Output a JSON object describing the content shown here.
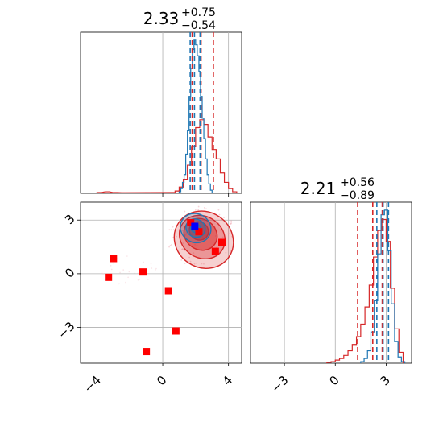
{
  "chart_data": {
    "type": "corner",
    "colors": {
      "red": "#d62728",
      "blue": "#1f77b4",
      "marker_red": "#ff0000",
      "marker_blue": "#0000ff",
      "grid": "#b0b0b0"
    },
    "panels": [
      {
        "id": "hist-x",
        "type": "histogram",
        "title": {
          "value": "2.33",
          "upper": "+0.75",
          "lower": "−0.54"
        },
        "xlim": [
          -5,
          4.8
        ],
        "grid_x": [
          -4,
          0,
          4
        ],
        "series": [
          {
            "name": "",
            "color": "#d62728",
            "bins": [
              [
                -4,
                0.005
              ],
              [
                -3.5,
                0.01
              ],
              [
                -3,
                0.005
              ],
              [
                -2.5,
                0.004
              ],
              [
                0.5,
                0.005
              ],
              [
                0.75,
                0.015
              ],
              [
                1.0,
                0.04
              ],
              [
                1.25,
                0.09
              ],
              [
                1.5,
                0.18
              ],
              [
                1.75,
                0.3
              ],
              [
                2.0,
                0.42
              ],
              [
                2.25,
                0.47
              ],
              [
                2.5,
                0.44
              ],
              [
                2.75,
                0.36
              ],
              [
                3.0,
                0.28
              ],
              [
                3.25,
                0.22
              ],
              [
                3.5,
                0.13
              ],
              [
                3.75,
                0.07
              ],
              [
                4.0,
                0.03
              ],
              [
                4.25,
                0.01
              ]
            ],
            "quantiles": [
              1.79,
              2.33,
              3.08
            ]
          },
          {
            "name": "",
            "color": "#1f77b4",
            "bins": [
              [
                1.0,
                0.01
              ],
              [
                1.1,
                0.03
              ],
              [
                1.2,
                0.07
              ],
              [
                1.3,
                0.12
              ],
              [
                1.4,
                0.25
              ],
              [
                1.5,
                0.4
              ],
              [
                1.6,
                0.62
              ],
              [
                1.7,
                0.8
              ],
              [
                1.8,
                0.92
              ],
              [
                1.9,
                0.98
              ],
              [
                2.0,
                0.95
              ],
              [
                2.1,
                0.88
              ],
              [
                2.2,
                0.78
              ],
              [
                2.3,
                0.62
              ],
              [
                2.4,
                0.48
              ],
              [
                2.5,
                0.35
              ],
              [
                2.6,
                0.22
              ],
              [
                2.7,
                0.12
              ],
              [
                2.8,
                0.06
              ],
              [
                2.9,
                0.02
              ]
            ],
            "quantiles": [
              1.67,
              1.93,
              2.27
            ]
          }
        ]
      },
      {
        "id": "hist-y",
        "type": "histogram",
        "title": {
          "value": "2.21",
          "upper": "+0.56",
          "lower": "−0.89"
        },
        "xlim": [
          -5,
          4.5
        ],
        "xticks": [
          "−3",
          "0",
          "3"
        ],
        "xtick_values": [
          -3,
          0,
          3
        ],
        "series": [
          {
            "name": "",
            "color": "#d62728",
            "bins": [
              [
                -0.5,
                0.005
              ],
              [
                -0.25,
                0.01
              ],
              [
                0.0,
                0.02
              ],
              [
                0.25,
                0.03
              ],
              [
                0.5,
                0.05
              ],
              [
                0.75,
                0.08
              ],
              [
                1.0,
                0.12
              ],
              [
                1.25,
                0.17
              ],
              [
                1.5,
                0.25
              ],
              [
                1.75,
                0.36
              ],
              [
                2.0,
                0.5
              ],
              [
                2.25,
                0.68
              ],
              [
                2.5,
                0.85
              ],
              [
                2.75,
                0.92
              ],
              [
                3.0,
                0.78
              ],
              [
                3.25,
                0.48
              ],
              [
                3.5,
                0.22
              ],
              [
                3.75,
                0.07
              ]
            ],
            "quantiles": [
              1.32,
              2.21,
              2.77
            ]
          },
          {
            "name": "",
            "color": "#1f77b4",
            "bins": [
              [
                1.5,
                0.01
              ],
              [
                1.7,
                0.03
              ],
              [
                1.9,
                0.08
              ],
              [
                2.1,
                0.2
              ],
              [
                2.3,
                0.4
              ],
              [
                2.5,
                0.7
              ],
              [
                2.7,
                0.95
              ],
              [
                2.9,
                0.98
              ],
              [
                3.1,
                0.72
              ],
              [
                3.3,
                0.38
              ],
              [
                3.5,
                0.14
              ],
              [
                3.7,
                0.04
              ],
              [
                3.9,
                0.01
              ]
            ],
            "quantiles": [
              2.45,
              2.82,
              3.14
            ]
          }
        ]
      },
      {
        "id": "scatter-2d",
        "type": "contour-scatter",
        "xlim": [
          -5,
          4.8
        ],
        "ylim": [
          -5,
          4
        ],
        "xticks": [
          "−4",
          "0",
          "4"
        ],
        "xtick_values": [
          -4,
          0,
          4
        ],
        "yticks": [
          "−3",
          "0",
          "3"
        ],
        "ytick_values": [
          -3,
          0,
          3
        ],
        "contours_red": [
          {
            "cx": 2.5,
            "cy": 1.9,
            "rx": 1.85,
            "ry": 1.55,
            "level": 0.25
          },
          {
            "cx": 2.4,
            "cy": 2.05,
            "rx": 1.45,
            "ry": 1.15,
            "level": 0.45
          },
          {
            "cx": 2.3,
            "cy": 2.2,
            "rx": 1.05,
            "ry": 0.85,
            "level": 0.7
          },
          {
            "cx": 2.2,
            "cy": 2.4,
            "rx": 0.6,
            "ry": 0.5,
            "level": 0.95
          }
        ],
        "contours_blue": [
          {
            "cx": 2.0,
            "cy": 2.55,
            "rx": 0.95,
            "ry": 0.8
          },
          {
            "cx": 2.0,
            "cy": 2.55,
            "rx": 0.6,
            "ry": 0.5
          },
          {
            "cx": 2.0,
            "cy": 2.55,
            "rx": 0.3,
            "ry": 0.25
          }
        ],
        "markers_red": [
          [
            1.7,
            2.85
          ],
          [
            2.2,
            2.35
          ],
          [
            3.2,
            1.25
          ],
          [
            3.6,
            1.75
          ],
          [
            -3.0,
            0.85
          ],
          [
            -3.3,
            -0.2
          ],
          [
            -1.2,
            0.1
          ],
          [
            0.35,
            -0.95
          ],
          [
            0.8,
            -3.2
          ],
          [
            -1.0,
            -4.35
          ]
        ],
        "markers_blue": [
          [
            1.95,
            2.65
          ]
        ]
      }
    ]
  }
}
